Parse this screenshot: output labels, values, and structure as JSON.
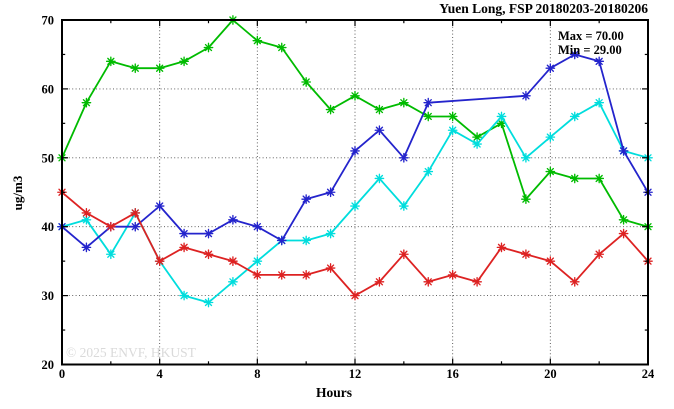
{
  "chart_data": {
    "type": "line",
    "title": "Yuen Long, FSP 20180203-20180206",
    "xlabel": "Hours",
    "ylabel": "ug/m3",
    "xlim": [
      0,
      24
    ],
    "ylim": [
      20,
      70
    ],
    "x_ticks": [
      0,
      4,
      8,
      12,
      16,
      20,
      24
    ],
    "y_ticks": [
      20,
      30,
      40,
      50,
      60,
      70
    ],
    "x_minor_step": 2,
    "y_minor_step": 5,
    "grid": true,
    "legend": "none",
    "x": [
      0,
      1,
      2,
      3,
      4,
      5,
      6,
      7,
      8,
      9,
      10,
      11,
      12,
      13,
      14,
      15,
      16,
      17,
      18,
      19,
      20,
      21,
      22,
      23,
      24
    ],
    "series": [
      {
        "name": "green-series",
        "color": "#00bb00",
        "values": [
          50,
          58,
          64,
          63,
          63,
          64,
          66,
          70,
          67,
          66,
          61,
          57,
          59,
          57,
          58,
          56,
          56,
          53,
          55,
          44,
          48,
          47,
          47,
          41,
          40
        ]
      },
      {
        "name": "cyan-series",
        "color": "#00dddd",
        "values": [
          40,
          41,
          36,
          42,
          35,
          30,
          29,
          32,
          35,
          38,
          38,
          39,
          43,
          47,
          43,
          48,
          54,
          52,
          56,
          50,
          53,
          56,
          58,
          51,
          50
        ]
      },
      {
        "name": "blue-series",
        "color": "#2424cc",
        "values": [
          40,
          37,
          40,
          40,
          43,
          39,
          39,
          41,
          40,
          38,
          44,
          45,
          51,
          54,
          50,
          58,
          null,
          null,
          null,
          59,
          63,
          65,
          64,
          51,
          45
        ]
      },
      {
        "name": "red-series",
        "color": "#dd2222",
        "values": [
          45,
          42,
          40,
          42,
          35,
          37,
          36,
          35,
          33,
          33,
          33,
          34,
          30,
          32,
          36,
          32,
          33,
          32,
          37,
          36,
          35,
          32,
          36,
          39,
          35
        ]
      }
    ],
    "annotations": [
      "Max = 70.00",
      "Min = 29.00"
    ],
    "watermark": "© 2025 ENVF, HKUST",
    "axis_color": "#000000",
    "background": "#ffffff"
  }
}
